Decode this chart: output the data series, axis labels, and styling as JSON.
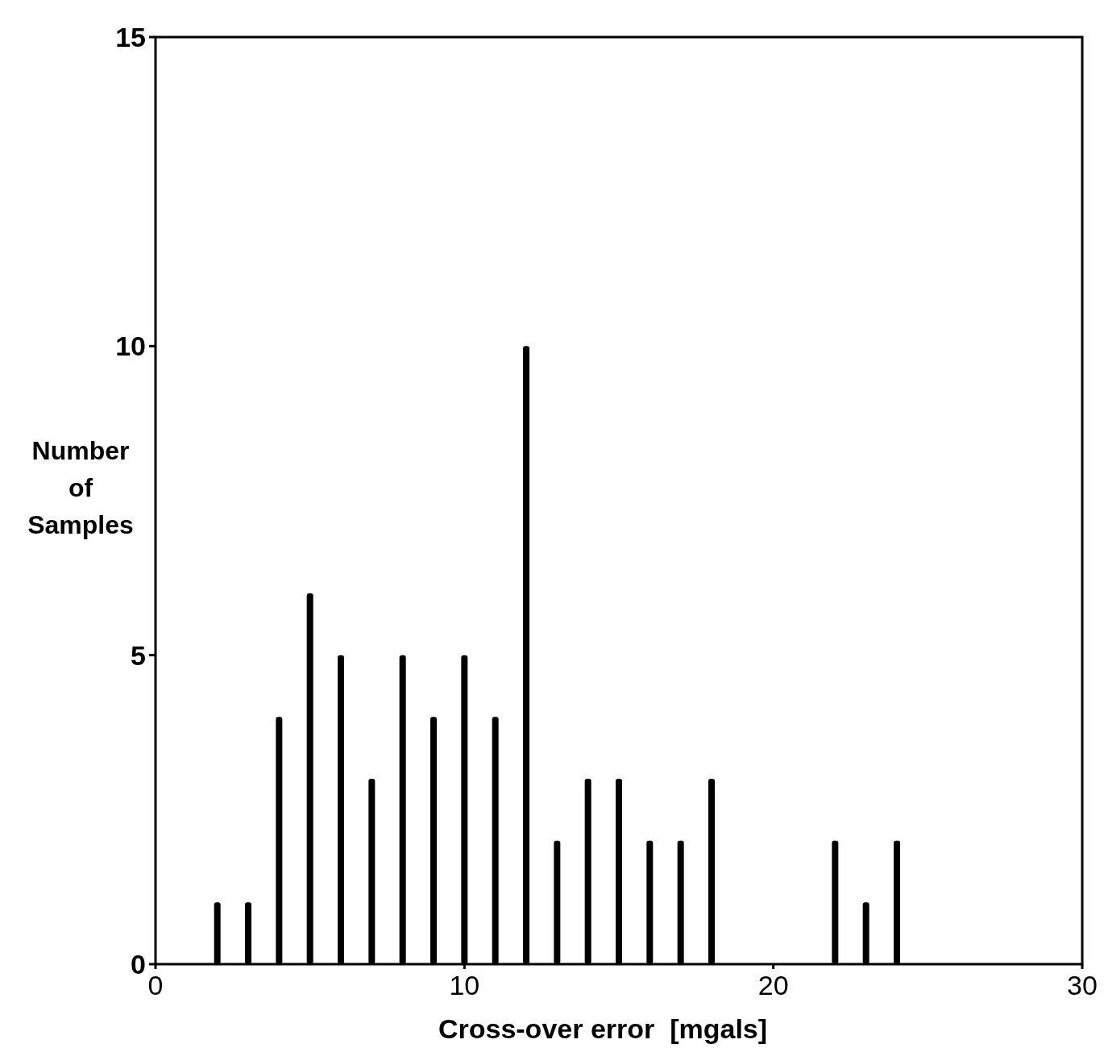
{
  "chart_data": {
    "type": "bar",
    "xlabel": "Cross-over error  [mgals]",
    "ylabel": "Number of Samples",
    "x": [
      2,
      3,
      4,
      5,
      6,
      7,
      8,
      9,
      10,
      11,
      12,
      13,
      14,
      15,
      16,
      17,
      18,
      22,
      23,
      24
    ],
    "values": [
      1,
      1,
      4,
      6,
      5,
      3,
      5,
      4,
      5,
      4,
      10,
      2,
      3,
      3,
      2,
      2,
      3,
      2,
      1,
      2
    ],
    "color": "#000000",
    "xlim": [
      0,
      30
    ],
    "xticks": [
      0,
      10,
      20,
      30
    ],
    "ylim": [
      0,
      15
    ],
    "yticks": [
      0,
      5,
      10,
      15
    ],
    "grid": false
  }
}
